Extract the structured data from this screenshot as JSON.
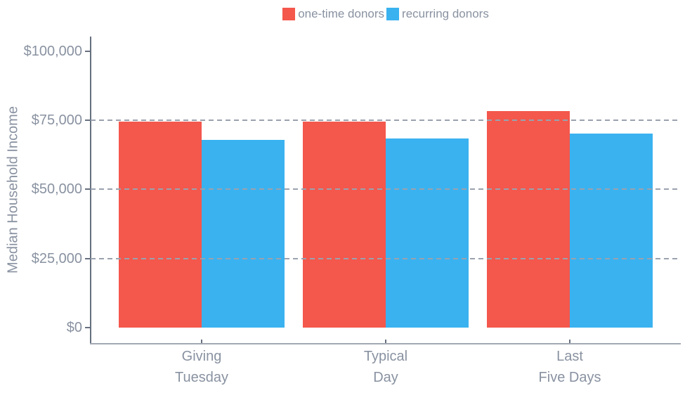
{
  "chart_data": {
    "type": "bar",
    "variant": "grouped-vertical",
    "title": "",
    "xlabel": "",
    "ylabel": "Median Household Income",
    "categories": [
      {
        "label": "Giving Tuesday",
        "lines": [
          "Giving",
          "Tuesday"
        ]
      },
      {
        "label": "Typical Day",
        "lines": [
          "Typical",
          "Day"
        ]
      },
      {
        "label": "Last Five Days",
        "lines": [
          "Last",
          "Five Days"
        ]
      }
    ],
    "series": [
      {
        "name": "one-time donors",
        "color": "#f4574c",
        "values": [
          74500,
          74400,
          78400
        ]
      },
      {
        "name": "recurring donors",
        "color": "#3ab2f0",
        "values": [
          67900,
          68500,
          70200
        ]
      }
    ],
    "y_ticks": [
      {
        "value": 0,
        "label": "$0"
      },
      {
        "value": 25000,
        "label": "$25,000"
      },
      {
        "value": 50000,
        "label": "$50,000"
      },
      {
        "value": 75000,
        "label": "$75,000"
      },
      {
        "value": 100000,
        "label": "$100,000"
      }
    ],
    "ylim": [
      0,
      100000
    ],
    "grid": {
      "orientation": "horizontal",
      "style": "dashed",
      "color": "#9aa2ae",
      "values": [
        25000,
        50000,
        75000
      ],
      "drawn_over_bars": true
    },
    "legend_position": "top-center",
    "axis_colors": {
      "y_axis_line": "#66707f",
      "x_axis_line": "#a3a9b3",
      "tick": "#66707f",
      "text": "#8992a1"
    }
  }
}
